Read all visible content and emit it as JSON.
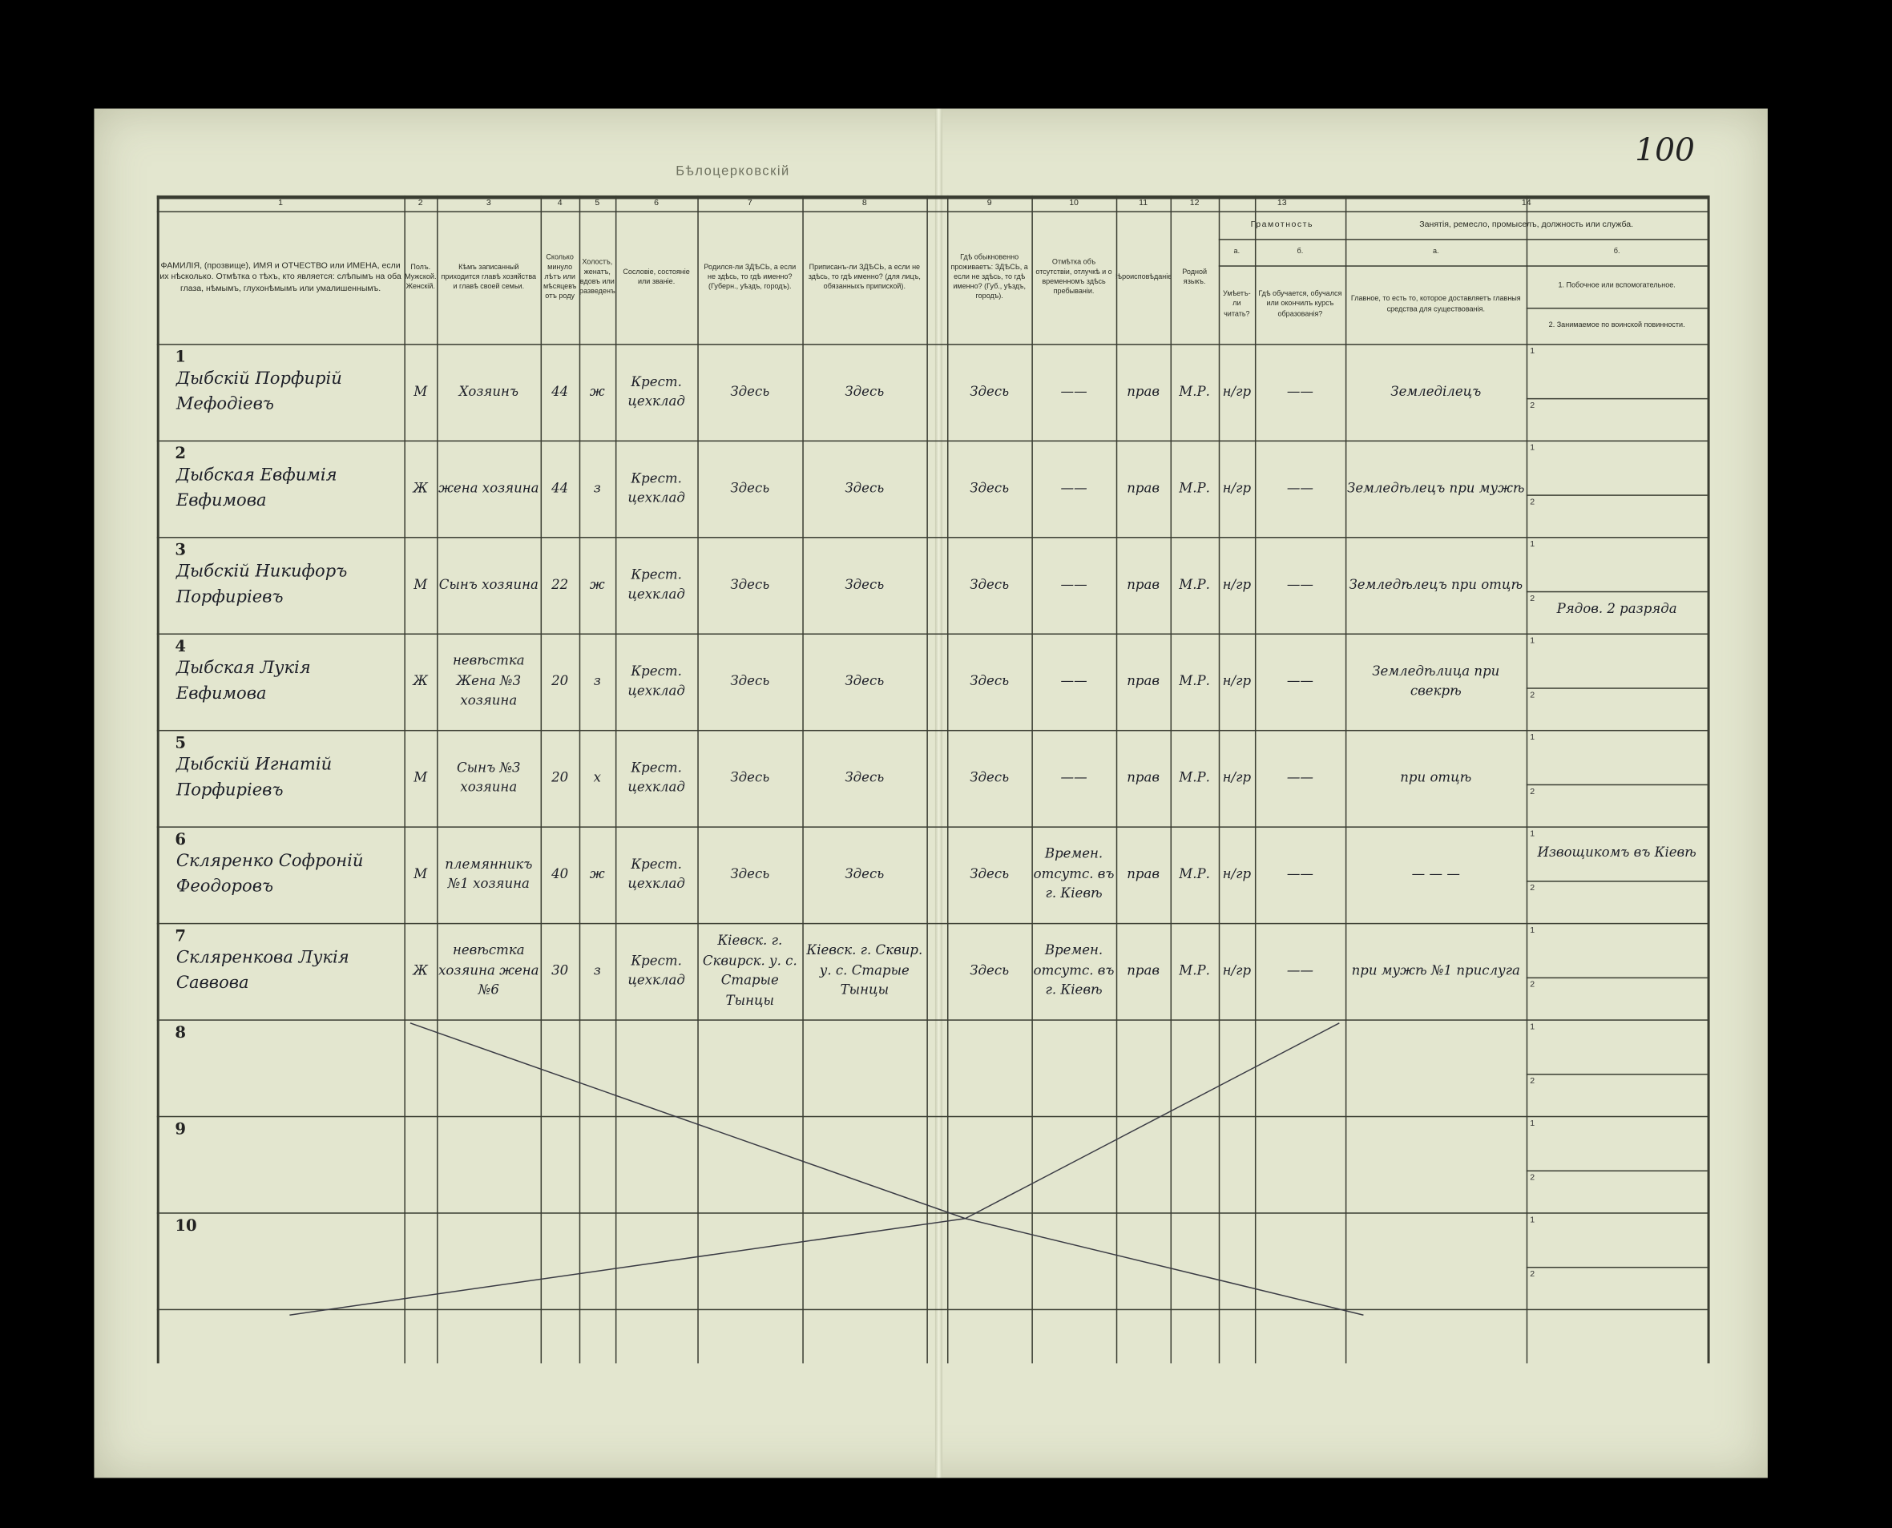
{
  "page_number": "100",
  "top_stamp": "Бѣлоцерковскій",
  "column_numbers": [
    "1",
    "2",
    "3",
    "4",
    "5",
    "6",
    "7",
    "8",
    "9",
    "10",
    "11",
    "12",
    "13",
    "14"
  ],
  "headers": {
    "c1": "ФАМИЛІЯ, (прозвище), ИМЯ и ОТЧЕСТВО или ИМЕНА, если их нѣсколько. Отмѣтка о тѣхъ, кто является: слѣпымъ на оба глаза, нѣмымъ, глухонѣмымъ или умалишеннымъ.",
    "c2": "Полъ. Мужской. Женскій.",
    "c3": "Кѣмъ записанный приходится главѣ хозяйства и главѣ своей семьи.",
    "c4": "Сколько минуло лѣтъ или мѣсяцевъ отъ роду",
    "c5": "Холостъ, женатъ, вдовъ или разведенъ",
    "c6": "Сословіе, состояніе или званіе.",
    "c7": "Родился-ли ЗДѢСЬ, а если не здѣсь, то гдѣ именно? (Губерн., уѣздъ, городъ).",
    "c8": "Приписанъ-ли ЗДѢСЬ, а если не здѣсь, то гдѣ именно? (для лицъ, обязанныхъ припиской).",
    "c9": "Гдѣ обыкновенно проживаетъ: ЗДѢСЬ, а если не здѣсь, то гдѣ именно? (Губ., уѣздъ, городъ).",
    "c10": "Отмѣтка объ отсутствіи, отлучкѣ и о временномъ здѣсь пребываніи.",
    "c11": "Вѣроисповѣданіе.",
    "c12": "Родной языкъ.",
    "c13": "Грамотность",
    "c13a_letter": "а.",
    "c13a": "Умѣетъ-ли читать?",
    "c13b_letter": "б.",
    "c13b": "Гдѣ обучается, обучался или окончилъ курсъ образованія?",
    "c14": "Занятія, ремесло, промыселъ, должность или служба.",
    "c14a_letter": "а.",
    "c14a": "Главное, то есть то, которое доставляетъ главныя средства для существованія.",
    "c14b_letter": "б.",
    "c14b_1": "1. Побочное или вспомогательное.",
    "c14b_2": "2. Занимаемое по воинской повинности."
  },
  "rows": [
    {
      "n": "1",
      "name": "Дыбскій Порфирій Мефодіевъ",
      "sex": "М",
      "relation": "Хозяинъ",
      "age": "44",
      "marital": "ж",
      "estate": "Крест. цехклад",
      "born": "Здесь",
      "registered": "Здесь",
      "resides": "Здесь",
      "absence": "——",
      "religion": "прав",
      "language": "М.Р.",
      "literate": "н/гр",
      "school": "——",
      "occ_main": "Земледілецъ",
      "occ_side": ""
    },
    {
      "n": "2",
      "name": "Дыбская Евфимія Евфимова",
      "sex": "Ж",
      "relation": "жена хозяина",
      "age": "44",
      "marital": "з",
      "estate": "Крест. цехклад",
      "born": "Здесь",
      "registered": "Здесь",
      "resides": "Здесь",
      "absence": "——",
      "religion": "прав",
      "language": "М.Р.",
      "literate": "н/гр",
      "school": "——",
      "occ_main": "Земледѣлецъ при мужѣ",
      "occ_side": ""
    },
    {
      "n": "3",
      "name": "Дыбскій Никифоръ Порфиріевъ",
      "sex": "М",
      "relation": "Сынъ хозяина",
      "age": "22",
      "marital": "ж",
      "estate": "Крест. цехклад",
      "born": "Здесь",
      "registered": "Здесь",
      "resides": "Здесь",
      "absence": "——",
      "religion": "прав",
      "language": "М.Р.",
      "literate": "н/гр",
      "school": "——",
      "occ_main": "Земледѣлецъ при отцѣ",
      "occ_side": "Рядов. 2 разряда"
    },
    {
      "n": "4",
      "name": "Дыбская Лукія Евфимова",
      "sex": "Ж",
      "relation": "невѣстка Жена №3 хозяина",
      "age": "20",
      "marital": "з",
      "estate": "Крест. цехклад",
      "born": "Здесь",
      "registered": "Здесь",
      "resides": "Здесь",
      "absence": "——",
      "religion": "прав",
      "language": "М.Р.",
      "literate": "н/гр",
      "school": "——",
      "occ_main": "Земледѣлица при свекрѣ",
      "occ_side": ""
    },
    {
      "n": "5",
      "name": "Дыбскій Игнатій Порфиріевъ",
      "sex": "М",
      "relation": "Сынъ №3 хозяина",
      "age": "20",
      "marital": "х",
      "estate": "Крест. цехклад",
      "born": "Здесь",
      "registered": "Здесь",
      "resides": "Здесь",
      "absence": "——",
      "religion": "прав",
      "language": "М.Р.",
      "literate": "н/гр",
      "school": "——",
      "occ_main": "при отцѣ",
      "occ_side": ""
    },
    {
      "n": "6",
      "name": "Скляренко Софроній Феодоровъ",
      "sex": "М",
      "relation": "племянникъ №1 хозяина",
      "age": "40",
      "marital": "ж",
      "estate": "Крест. цехклад",
      "born": "Здесь",
      "registered": "Здесь",
      "resides": "Здесь",
      "absence": "Времен. отсутс. въ г. Кіевѣ",
      "religion": "прав",
      "language": "М.Р.",
      "literate": "н/гр",
      "school": "——",
      "occ_main": "— — —",
      "occ_side": "Извощикомъ въ Кіевѣ"
    },
    {
      "n": "7",
      "name": "Скляренкова Лукія Саввова",
      "sex": "Ж",
      "relation": "невѣстка хозяина жена №6",
      "age": "30",
      "marital": "з",
      "estate": "Крест. цехклад",
      "born": "Кіевск. г. Сквирск. у. с. Старые Тынцы",
      "registered": "Кіевск. г. Сквир. у. с. Старые Тынцы",
      "resides": "Здесь",
      "absence": "Времен. отсутс. въ г. Кіевѣ",
      "religion": "прав",
      "language": "М.Р.",
      "literate": "н/гр",
      "school": "——",
      "occ_main": "при мужѣ №1 прислуга",
      "occ_side": ""
    },
    {
      "n": "8"
    },
    {
      "n": "9"
    },
    {
      "n": "10"
    }
  ],
  "sub_labels": {
    "one": "1",
    "two": "2"
  }
}
